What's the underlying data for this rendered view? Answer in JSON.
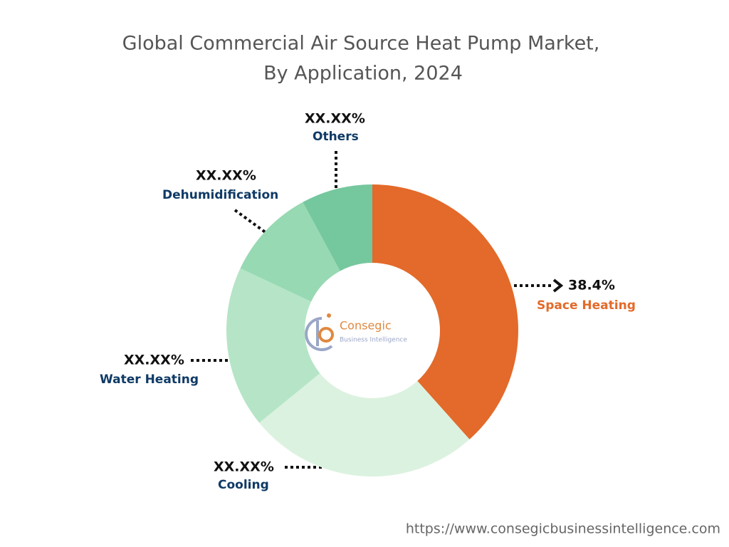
{
  "chart_data": {
    "type": "pie",
    "title": [
      "Global Commercial Air Source Heat Pump Market,",
      "By Application, 2024"
    ],
    "categories": [
      "Space Heating",
      "Cooling",
      "Water Heating",
      "Dehumidification",
      "Others"
    ],
    "values": [
      38.4,
      25.7,
      17.9,
      10.1,
      7.9
    ],
    "value_labels": [
      "38.4%",
      "XX.XX%",
      "XX.XX%",
      "XX.XX%",
      "XX.XX%"
    ],
    "colors": [
      "#e36a2a",
      "#dcf2e0",
      "#b5e5c6",
      "#97d9b2",
      "#75c79e"
    ],
    "label_colors": [
      "#e36a2a",
      "#0f3a66",
      "#0f3a66",
      "#0f3a66",
      "#0f3a66"
    ],
    "center_logo": [
      "Consegic",
      "Business Intelligence"
    ],
    "footer": "https://www.consegicbusinessintelligence.com"
  }
}
